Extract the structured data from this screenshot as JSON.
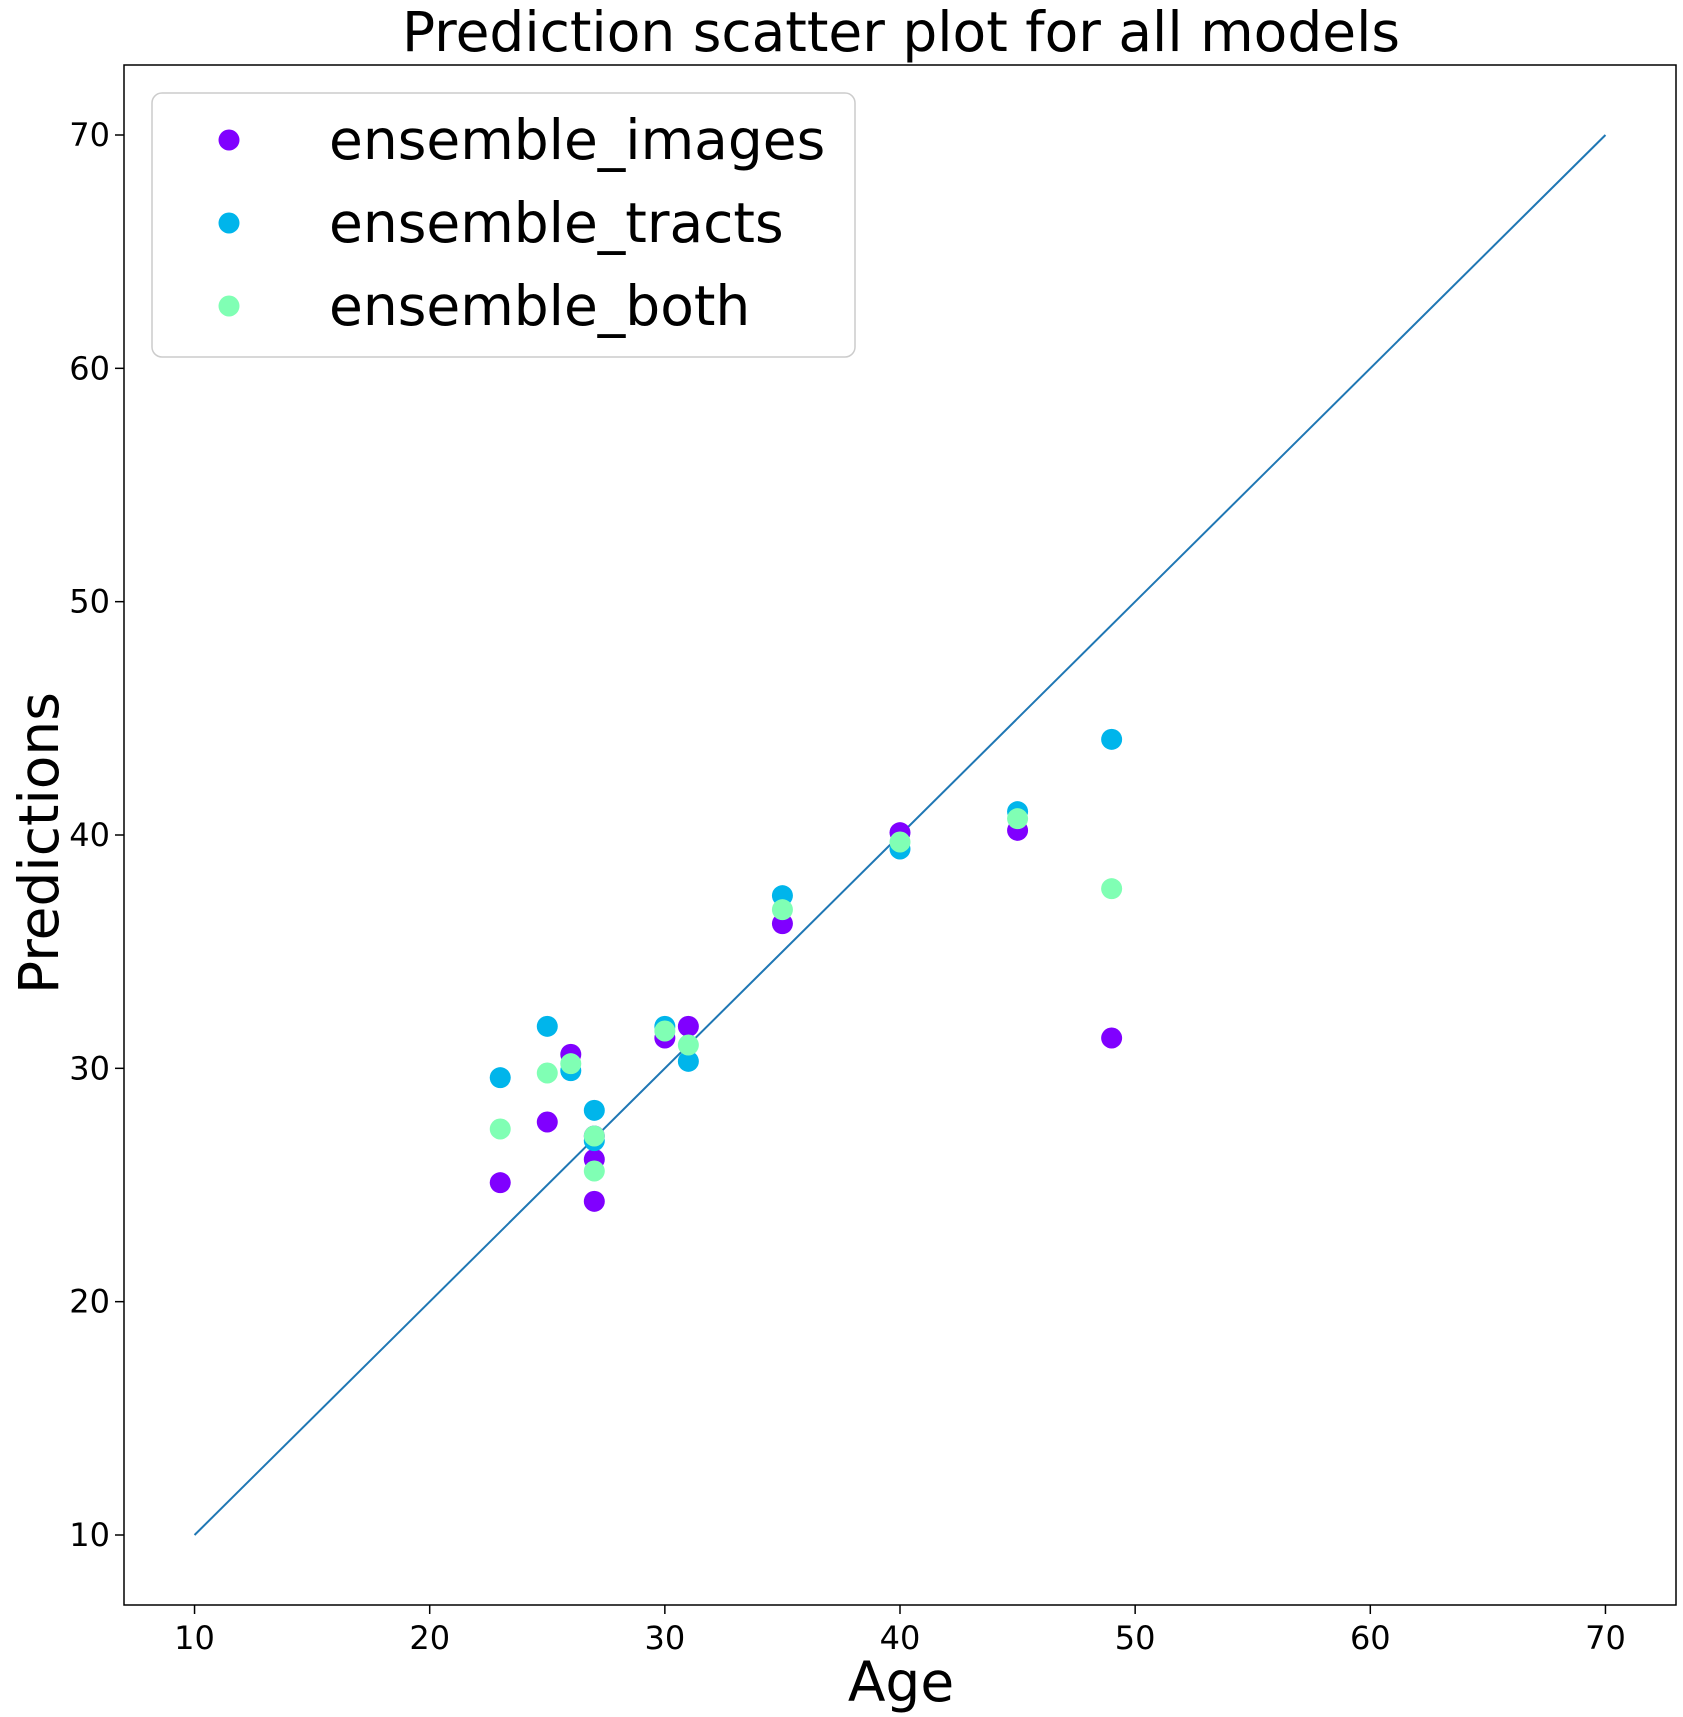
{
  "chart_data": {
    "type": "scatter",
    "title": "Prediction scatter plot for all models",
    "xlabel": "Age",
    "ylabel": "Predictions",
    "xlim": [
      7,
      73
    ],
    "ylim": [
      7,
      73
    ],
    "xticks": [
      10,
      20,
      30,
      40,
      50,
      60,
      70
    ],
    "yticks": [
      10,
      20,
      30,
      40,
      50,
      60,
      70
    ],
    "grid": false,
    "legend_position": "top-left",
    "reference_line": {
      "x": [
        10,
        70
      ],
      "y": [
        10,
        70
      ],
      "color": "#1f77b4"
    },
    "series": [
      {
        "name": "ensemble_images",
        "color": "#8000ff",
        "x": [
          23,
          25,
          26,
          27,
          27,
          27,
          30,
          31,
          35,
          40,
          45,
          49
        ],
        "y": [
          25.1,
          27.7,
          30.6,
          24.3,
          26.1,
          27.1,
          31.3,
          31.8,
          36.2,
          40.1,
          40.2,
          31.3
        ]
      },
      {
        "name": "ensemble_tracts",
        "color": "#00b5eb",
        "x": [
          23,
          25,
          26,
          27,
          27,
          30,
          31,
          35,
          40,
          45,
          49
        ],
        "y": [
          29.6,
          31.8,
          29.9,
          28.2,
          26.9,
          31.8,
          30.3,
          37.4,
          39.4,
          41.0,
          44.1
        ]
      },
      {
        "name": "ensemble_both",
        "color": "#80ffb4",
        "x": [
          23,
          25,
          26,
          27,
          27,
          30,
          31,
          35,
          40,
          45,
          49
        ],
        "y": [
          27.4,
          29.8,
          30.2,
          27.1,
          25.6,
          31.6,
          31.0,
          36.8,
          39.7,
          40.7,
          37.7
        ]
      }
    ]
  }
}
